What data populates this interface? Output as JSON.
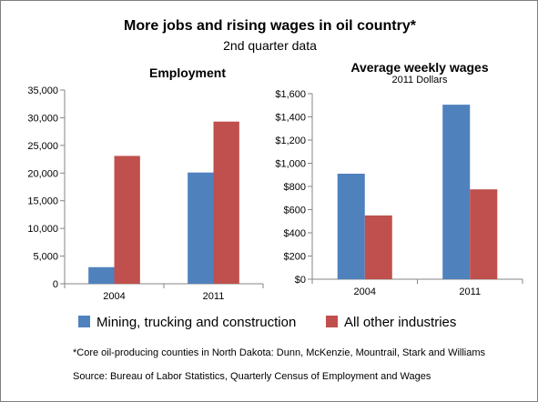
{
  "header": {
    "title": "More jobs and rising wages in oil country*",
    "subtitle": "2nd quarter data"
  },
  "colors": {
    "series_1": "#4f81bd",
    "series_2": "#c0504d",
    "axis": "#868686"
  },
  "legend": {
    "items": [
      {
        "label": "Mining, trucking and construction",
        "color": "#4f81bd"
      },
      {
        "label": "All other industries",
        "color": "#c0504d"
      }
    ]
  },
  "chart_data": [
    {
      "type": "bar",
      "title": "Employment",
      "subtitle": "",
      "categories": [
        "2004",
        "2011"
      ],
      "series": [
        {
          "name": "Mining, trucking and construction",
          "values": [
            3000,
            20100
          ]
        },
        {
          "name": "All other industries",
          "values": [
            23100,
            29300
          ]
        }
      ],
      "ylim": [
        0,
        35000
      ],
      "yticks": [
        0,
        5000,
        10000,
        15000,
        20000,
        25000,
        30000,
        35000
      ],
      "ytick_labels": [
        "0",
        "5,000",
        "10,000",
        "15,000",
        "20,000",
        "25,000",
        "30,000",
        "35,000"
      ],
      "grid": false,
      "legend": "bottom"
    },
    {
      "type": "bar",
      "title": "Average weekly wages",
      "subtitle": "2011 Dollars",
      "categories": [
        "2004",
        "2011"
      ],
      "series": [
        {
          "name": "Mining, trucking and construction",
          "values": [
            910,
            1505
          ]
        },
        {
          "name": "All other industries",
          "values": [
            550,
            775
          ]
        }
      ],
      "ylim": [
        0,
        1600
      ],
      "yticks": [
        0,
        200,
        400,
        600,
        800,
        1000,
        1200,
        1400,
        1600
      ],
      "ytick_labels": [
        "$0",
        "$200",
        "$400",
        "$600",
        "$800",
        "$1,000",
        "$1,200",
        "$1,400",
        "$1,600"
      ],
      "grid": false,
      "legend": "bottom"
    }
  ],
  "footnote": "*Core oil-producing counties in North Dakota: Dunn, McKenzie, Mountrail, Stark and Williams",
  "source": "Source: Bureau of Labor Statistics, Quarterly Census of Employment and Wages"
}
